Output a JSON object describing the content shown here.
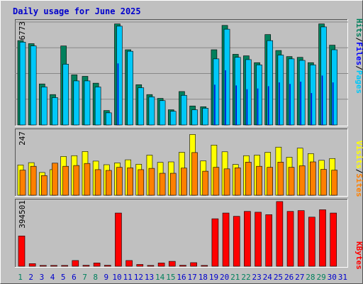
{
  "title": "Daily usage for June 2025",
  "colors": {
    "page_bg": "#c0c0c0",
    "plot_bg": "#c0c0c0",
    "grid": "#888888",
    "title": "#0000cc",
    "hits": "#00805c",
    "files": "#00c8f8",
    "pages": "#00e8e8",
    "sites": "#ff8000",
    "visits": "#ffff00",
    "kbytes": "#ff0000",
    "weekend_label": "#00805c",
    "weekday_label": "#0000cc"
  },
  "axis_max_labels": {
    "top": "6773",
    "middle": "247",
    "bottom": "394501"
  },
  "legend_top": {
    "pages": "Pages",
    "files": "Files",
    "hits": "Hits",
    "sep": "/"
  },
  "legend_middle": {
    "sites": "Sites",
    "visits": "Visits",
    "sep": "/"
  },
  "legend_bottom": {
    "kbytes": "KBytes"
  },
  "weekend_days": [
    1,
    7,
    8,
    14,
    15,
    21,
    22,
    28,
    29
  ],
  "chart_data": [
    {
      "type": "bar",
      "title": "Daily usage for June 2025",
      "panel": "top",
      "ylim": [
        0,
        6773
      ],
      "categories": [
        "1",
        "2",
        "3",
        "4",
        "5",
        "6",
        "7",
        "8",
        "9",
        "10",
        "11",
        "12",
        "13",
        "14",
        "15",
        "16",
        "17",
        "18",
        "19",
        "20",
        "21",
        "22",
        "23",
        "24",
        "25",
        "26",
        "27",
        "28",
        "29",
        "30",
        "31"
      ],
      "series": [
        {
          "name": "Hits",
          "values": [
            5550,
            5350,
            2700,
            2000,
            5200,
            3300,
            3200,
            2750,
            950,
            6650,
            4950,
            2650,
            2000,
            1750,
            1000,
            2200,
            1250,
            1200,
            4950,
            6550,
            4650,
            4550,
            4100,
            5950,
            4900,
            4500,
            4450,
            4100,
            6650,
            5250,
            0
          ]
        },
        {
          "name": "Files",
          "values": [
            5450,
            5200,
            2500,
            1800,
            4000,
            2900,
            2900,
            2500,
            800,
            6500,
            4850,
            2450,
            1850,
            1600,
            900,
            1950,
            1000,
            1100,
            4350,
            6300,
            4450,
            4300,
            3950,
            5550,
            4600,
            4350,
            4250,
            3950,
            6450,
            4950,
            0
          ]
        },
        {
          "name": "Pages",
          "values": [
            0,
            0,
            0,
            0,
            0,
            0,
            0,
            0,
            0,
            4050,
            0,
            0,
            0,
            0,
            0,
            0,
            0,
            0,
            2650,
            3600,
            2600,
            2350,
            2400,
            2550,
            2800,
            2700,
            2850,
            2100,
            3250,
            2800,
            0
          ]
        }
      ]
    },
    {
      "type": "bar",
      "panel": "middle",
      "ylim": [
        0,
        247
      ],
      "categories": [
        "1",
        "2",
        "3",
        "4",
        "5",
        "6",
        "7",
        "8",
        "9",
        "10",
        "11",
        "12",
        "13",
        "14",
        "15",
        "16",
        "17",
        "18",
        "19",
        "20",
        "21",
        "22",
        "23",
        "24",
        "25",
        "26",
        "27",
        "28",
        "29",
        "30",
        "31"
      ],
      "series": [
        {
          "name": "Visits",
          "values": [
            117,
            126,
            88,
            99,
            150,
            153,
            169,
            132,
            118,
            125,
            137,
            120,
            155,
            127,
            129,
            166,
            235,
            133,
            194,
            168,
            119,
            153,
            155,
            166,
            186,
            147,
            182,
            161,
            135,
            142,
            0
          ]
        },
        {
          "name": "Sites",
          "values": [
            97,
            112,
            76,
            124,
            112,
            115,
            123,
            99,
            96,
            108,
            106,
            99,
            104,
            85,
            85,
            105,
            165,
            93,
            108,
            102,
            106,
            128,
            112,
            108,
            128,
            108,
            114,
            129,
            100,
            97,
            0
          ]
        }
      ]
    },
    {
      "type": "bar",
      "panel": "bottom",
      "ylim": [
        0,
        394501
      ],
      "categories": [
        "1",
        "2",
        "3",
        "4",
        "5",
        "6",
        "7",
        "8",
        "9",
        "10",
        "11",
        "12",
        "13",
        "14",
        "15",
        "16",
        "17",
        "18",
        "19",
        "20",
        "21",
        "22",
        "23",
        "24",
        "25",
        "26",
        "27",
        "28",
        "29",
        "30",
        "31"
      ],
      "series": [
        {
          "name": "KBytes",
          "values": [
            185000,
            16000,
            5000,
            5000,
            5000,
            35000,
            6000,
            20000,
            6000,
            325000,
            35000,
            11000,
            5000,
            20000,
            30000,
            6000,
            22000,
            5000,
            290000,
            325000,
            305000,
            335000,
            330000,
            315000,
            395000,
            335000,
            340000,
            300000,
            345000,
            325000,
            0
          ]
        }
      ]
    }
  ]
}
